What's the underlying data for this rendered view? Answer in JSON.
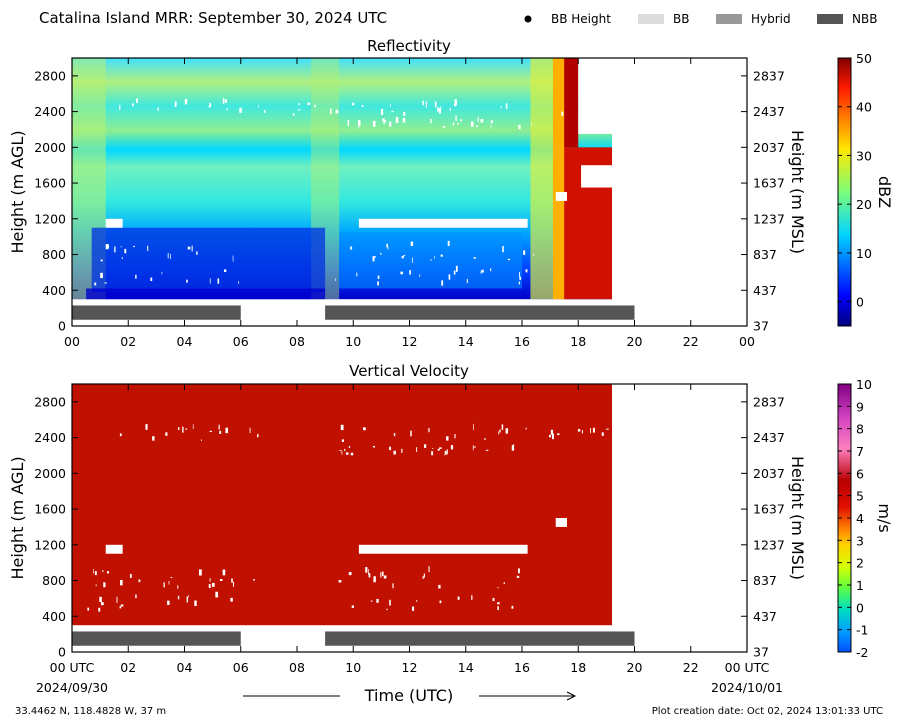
{
  "header": {
    "title": "Catalina Island MRR:  September 30, 2024 UTC",
    "legend": [
      {
        "label": "BB Height",
        "marker": "dot",
        "color": "#000000"
      },
      {
        "label": "BB",
        "marker": "box",
        "color": "#dcdcdc"
      },
      {
        "label": "Hybrid",
        "marker": "box",
        "color": "#999999"
      },
      {
        "label": "NBB",
        "marker": "box",
        "color": "#555555"
      }
    ]
  },
  "xaxis": {
    "label": "Time (UTC)",
    "ticks": [
      "00",
      "02",
      "04",
      "06",
      "08",
      "10",
      "12",
      "14",
      "16",
      "18",
      "20",
      "22",
      "00"
    ],
    "ticks_bottom": [
      "00 UTC",
      "02",
      "04",
      "06",
      "08",
      "10",
      "12",
      "14",
      "16",
      "18",
      "20",
      "22",
      "00 UTC"
    ],
    "start_date": "2024/09/30",
    "end_date": "2024/10/01",
    "range_hours": [
      0,
      24
    ]
  },
  "footer": {
    "location": "33.4462 N, 118.4828 W, 37 m",
    "creation": "Plot creation date: Oct 02, 2024 13:01:33 UTC"
  },
  "chart_data": [
    {
      "type": "heatmap",
      "title": "Reflectivity",
      "ylabel": "Height (m AGL)",
      "ylabel_right": "Height (m MSL)",
      "ylim": [
        0,
        3000
      ],
      "yticks": [
        "0",
        "400",
        "800",
        "1200",
        "1600",
        "2000",
        "2400",
        "2800"
      ],
      "yticks_right": [
        "37",
        "437",
        "837",
        "1237",
        "1637",
        "2037",
        "2437",
        "2837"
      ],
      "colorbar": {
        "label": "dBZ",
        "range": [
          -5,
          50
        ],
        "ticks": [
          "0",
          "10",
          "20",
          "30",
          "40",
          "50"
        ]
      },
      "data_extent_hours": [
        0,
        19.2
      ],
      "data_height_range_m": [
        300,
        3000
      ],
      "nbb_segments": [
        [
          0,
          6
        ],
        [
          9,
          20
        ]
      ]
    },
    {
      "type": "heatmap",
      "title": "Vertical Velocity",
      "ylabel": "Height (m AGL)",
      "ylabel_right": "Height (m MSL)",
      "ylim": [
        0,
        3000
      ],
      "yticks": [
        "0",
        "400",
        "800",
        "1200",
        "1600",
        "2000",
        "2400",
        "2800"
      ],
      "yticks_right": [
        "37",
        "437",
        "837",
        "1237",
        "1637",
        "2037",
        "2437",
        "2837"
      ],
      "colorbar": {
        "label": "m/s",
        "range": [
          -2,
          10
        ],
        "ticks": [
          "-2",
          "-1",
          "0",
          "1",
          "2",
          "3",
          "4",
          "5",
          "6",
          "7",
          "8",
          "9",
          "10"
        ]
      },
      "data_extent_hours": [
        0,
        19.2
      ],
      "data_height_range_m": [
        300,
        3000
      ],
      "dominant_value": 5.7,
      "nbb_segments": [
        [
          0,
          6
        ],
        [
          9,
          20
        ]
      ]
    }
  ]
}
